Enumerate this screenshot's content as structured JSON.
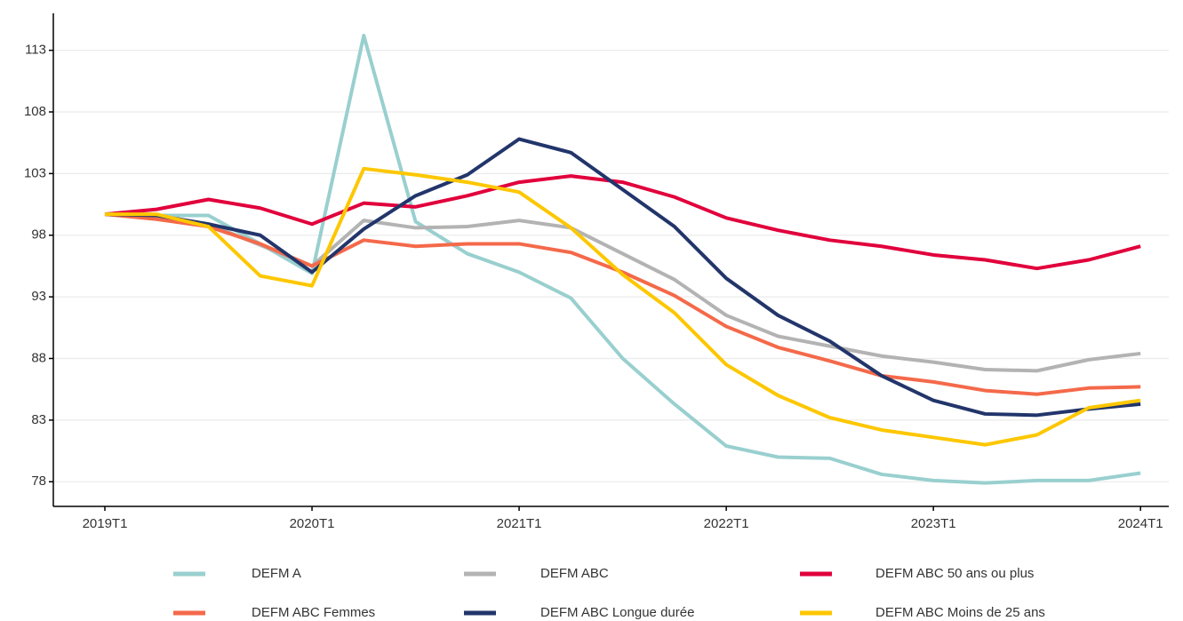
{
  "chart_data": {
    "type": "line",
    "categories": [
      "2019T1",
      null,
      null,
      null,
      "2020T1",
      null,
      null,
      null,
      "2021T1",
      null,
      null,
      null,
      "2022T1",
      null,
      null,
      null,
      "2023T1",
      null,
      null,
      null,
      "2024T1"
    ],
    "ylim": [
      76,
      116
    ],
    "yticks": [
      78,
      83,
      88,
      93,
      98,
      103,
      108,
      113
    ],
    "grid": true,
    "series": [
      {
        "name": "DEFM A",
        "color": "#99cfcf",
        "values": [
          99.7,
          99.6,
          99.6,
          97.3,
          94.9,
          114.2,
          99.1,
          96.5,
          95.0,
          92.9,
          88.0,
          84.3,
          80.9,
          80.0,
          79.9,
          78.6,
          78.1,
          77.9,
          78.1,
          78.1,
          78.7
        ]
      },
      {
        "name": "DEFM ABC",
        "color": "#b3b3b3",
        "values": [
          99.7,
          99.6,
          98.9,
          97.2,
          95.5,
          99.2,
          98.6,
          98.7,
          99.2,
          98.6,
          96.5,
          94.4,
          91.5,
          89.8,
          89.0,
          88.2,
          87.7,
          87.1,
          87.0,
          87.9,
          88.4
        ]
      },
      {
        "name": "DEFM ABC 50 ans ou plus",
        "color": "#e1003c",
        "values": [
          99.7,
          100.1,
          100.9,
          100.2,
          98.9,
          100.6,
          100.3,
          101.2,
          102.3,
          102.8,
          102.3,
          101.1,
          99.4,
          98.4,
          97.6,
          97.1,
          96.4,
          96.0,
          95.3,
          96.0,
          97.1
        ]
      },
      {
        "name": "DEFM ABC Femmes",
        "color": "#f4694a",
        "values": [
          99.7,
          99.3,
          98.7,
          97.3,
          95.5,
          97.6,
          97.1,
          97.3,
          97.3,
          96.6,
          95.0,
          93.1,
          90.6,
          88.9,
          87.8,
          86.6,
          86.1,
          85.4,
          85.1,
          85.6,
          85.7
        ]
      },
      {
        "name": "DEFM ABC Longue durée",
        "color": "#22356b",
        "values": [
          99.7,
          99.6,
          98.9,
          98.0,
          95.0,
          98.5,
          101.2,
          102.9,
          105.8,
          104.7,
          101.7,
          98.7,
          94.5,
          91.5,
          89.4,
          86.6,
          84.6,
          83.5,
          83.4,
          83.9,
          84.3
        ]
      },
      {
        "name": "DEFM ABC Moins de 25 ans",
        "color": "#fdc700",
        "values": [
          99.7,
          99.7,
          98.7,
          94.7,
          93.9,
          103.4,
          102.9,
          102.3,
          101.5,
          98.6,
          94.8,
          91.7,
          87.5,
          85.0,
          83.2,
          82.2,
          81.6,
          81.0,
          81.8,
          84.0,
          84.6
        ]
      }
    ]
  }
}
